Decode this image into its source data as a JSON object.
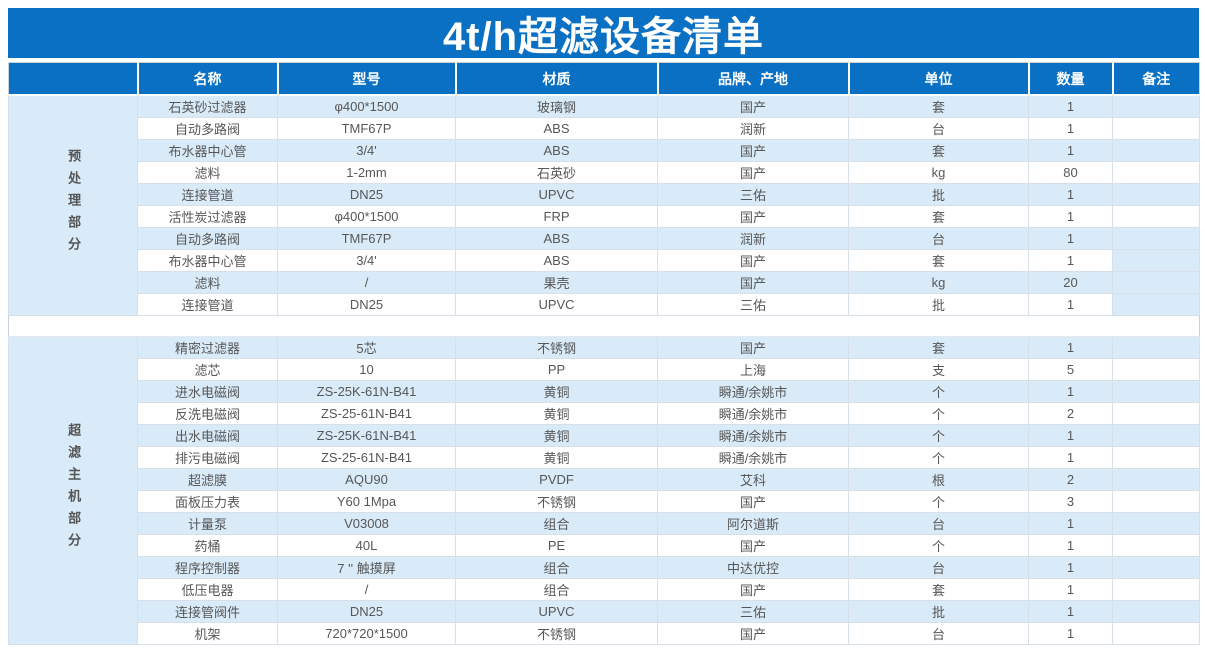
{
  "title": "4t/h超滤设备清单",
  "colors": {
    "header_blue": "#0a70c4",
    "band_light_blue": "#d9eaf8",
    "grid_line": "#d7dfe9",
    "header_text": "#ffffff",
    "cell_text": "#575757"
  },
  "columns": [
    "名称",
    "型号",
    "材质",
    "品牌、产地",
    "单位",
    "数量",
    "备注"
  ],
  "sections": [
    {
      "label": "预处理部分",
      "rows": [
        {
          "name": "石英砂过滤器",
          "model": "φ400*1500",
          "material": "玻璃钢",
          "brand": "国产",
          "unit": "套",
          "qty": "1",
          "note": ""
        },
        {
          "name": "自动多路阀",
          "model": "TMF67P",
          "material": "ABS",
          "brand": "润新",
          "unit": "台",
          "qty": "1",
          "note": ""
        },
        {
          "name": "布水器中心管",
          "model": "3/4'",
          "material": "ABS",
          "brand": "国产",
          "unit": "套",
          "qty": "1",
          "note": ""
        },
        {
          "name": "滤料",
          "model": "1-2mm",
          "material": "石英砂",
          "brand": "国产",
          "unit": "kg",
          "qty": "80",
          "note": ""
        },
        {
          "name": "连接管道",
          "model": "DN25",
          "material": "UPVC",
          "brand": "三佑",
          "unit": "批",
          "qty": "1",
          "note": ""
        },
        {
          "name": "活性炭过滤器",
          "model": "φ400*1500",
          "material": "FRP",
          "brand": "国产",
          "unit": "套",
          "qty": "1",
          "note": ""
        },
        {
          "name": "自动多路阀",
          "model": "TMF67P",
          "material": "ABS",
          "brand": "润新",
          "unit": "台",
          "qty": "1",
          "note": ""
        },
        {
          "name": "布水器中心管",
          "model": "3/4'",
          "material": "ABS",
          "brand": "国产",
          "unit": "套",
          "qty": "1",
          "note": "",
          "note_shaded": true
        },
        {
          "name": "滤料",
          "model": "/",
          "material": "果壳",
          "brand": "国产",
          "unit": "kg",
          "qty": "20",
          "note": "",
          "note_shaded": true
        },
        {
          "name": "连接管道",
          "model": "DN25",
          "material": "UPVC",
          "brand": "三佑",
          "unit": "批",
          "qty": "1",
          "note": "",
          "note_shaded": true
        }
      ]
    },
    {
      "label": "超滤主机部分",
      "rows": [
        {
          "name": "精密过滤器",
          "model": "5芯",
          "material": "不锈钢",
          "brand": "国产",
          "unit": "套",
          "qty": "1",
          "note": ""
        },
        {
          "name": "滤芯",
          "model": "10",
          "material": "PP",
          "brand": "上海",
          "unit": "支",
          "qty": "5",
          "note": ""
        },
        {
          "name": "进水电磁阀",
          "model": "ZS-25K-61N-B41",
          "material": "黄铜",
          "brand": "瞬通/余姚市",
          "unit": "个",
          "qty": "1",
          "note": ""
        },
        {
          "name": "反洗电磁阀",
          "model": "ZS-25-61N-B41",
          "material": "黄铜",
          "brand": "瞬通/余姚市",
          "unit": "个",
          "qty": "2",
          "note": ""
        },
        {
          "name": "出水电磁阀",
          "model": "ZS-25K-61N-B41",
          "material": "黄铜",
          "brand": "瞬通/余姚市",
          "unit": "个",
          "qty": "1",
          "note": ""
        },
        {
          "name": "排污电磁阀",
          "model": "ZS-25-61N-B41",
          "material": "黄铜",
          "brand": "瞬通/余姚市",
          "unit": "个",
          "qty": "1",
          "note": ""
        },
        {
          "name": "超滤膜",
          "model": "AQU90",
          "material": "PVDF",
          "brand": "艾科",
          "unit": "根",
          "qty": "2",
          "note": ""
        },
        {
          "name": "面板压力表",
          "model": "Y60 1Mpa",
          "material": "不锈钢",
          "brand": "国产",
          "unit": "个",
          "qty": "3",
          "note": ""
        },
        {
          "name": "计量泵",
          "model": "V03008",
          "material": "组合",
          "brand": "阿尔道斯",
          "unit": "台",
          "qty": "1",
          "note": ""
        },
        {
          "name": "药桶",
          "model": "40L",
          "material": "PE",
          "brand": "国产",
          "unit": "个",
          "qty": "1",
          "note": ""
        },
        {
          "name": "程序控制器",
          "model": "7 ''  触摸屏",
          "material": "组合",
          "brand": "中达优控",
          "unit": "台",
          "qty": "1",
          "note": ""
        },
        {
          "name": "低压电器",
          "model": "/",
          "material": "组合",
          "brand": "国产",
          "unit": "套",
          "qty": "1",
          "note": ""
        },
        {
          "name": "连接管阀件",
          "model": "DN25",
          "material": "UPVC",
          "brand": "三佑",
          "unit": "批",
          "qty": "1",
          "note": ""
        },
        {
          "name": "机架",
          "model": "720*720*1500",
          "material": "不锈钢",
          "brand": "国产",
          "unit": "台",
          "qty": "1",
          "note": ""
        }
      ]
    }
  ]
}
